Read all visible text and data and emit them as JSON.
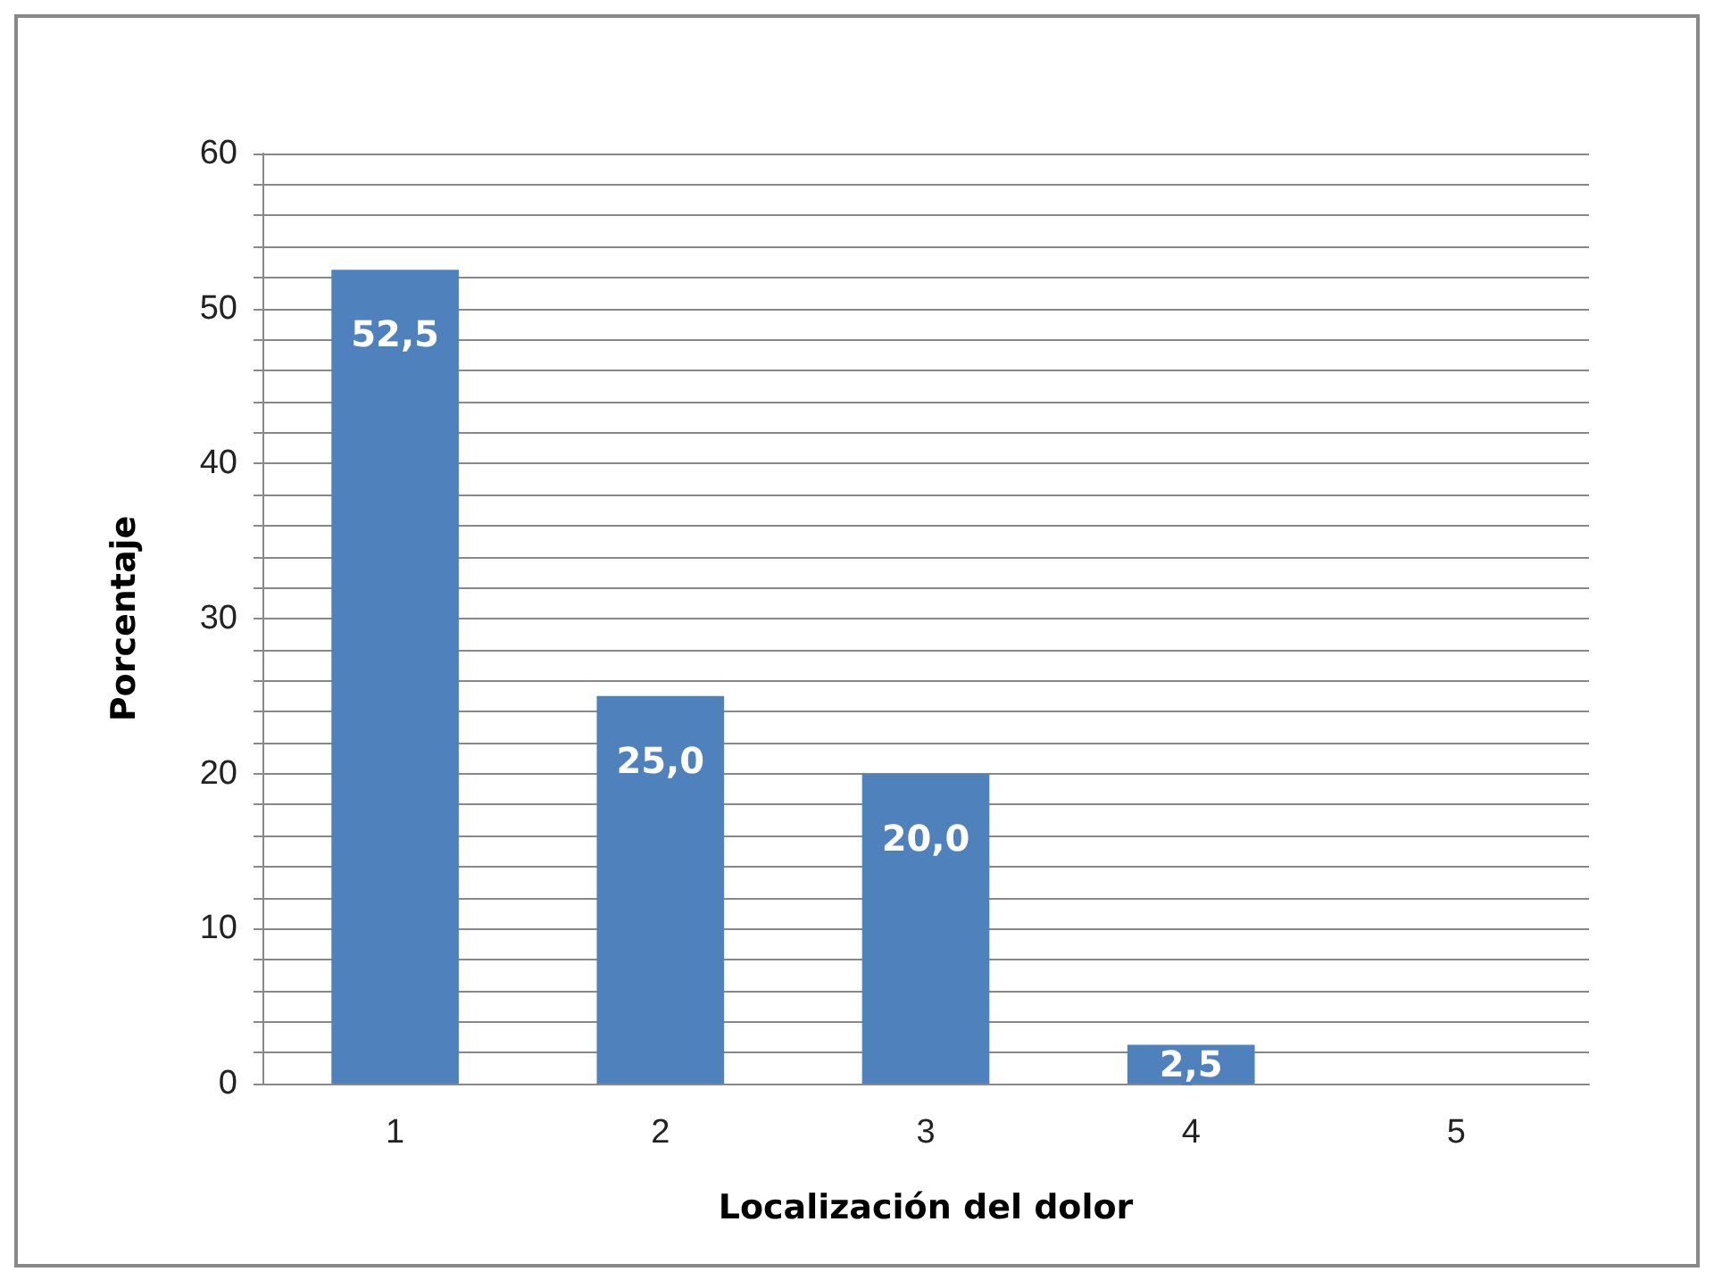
{
  "chart_data": {
    "type": "bar",
    "categories": [
      "1",
      "2",
      "3",
      "4",
      "5"
    ],
    "values": [
      52.5,
      25.0,
      20.0,
      2.5,
      0
    ],
    "value_labels": [
      "52,5",
      "25,0",
      "20,0",
      "2,5",
      null
    ],
    "color": "#4f81bd",
    "xlabel": "Localización del dolor",
    "ylabel": "Porcentaje",
    "ylim": [
      0,
      60
    ],
    "yticks": [
      0,
      {
        "value": 2,
        "label": null
      },
      {
        "value": 4,
        "label": null
      },
      {
        "value": 6,
        "label": null
      },
      {
        "value": 8,
        "label": null
      },
      10,
      {
        "value": 12,
        "label": null
      },
      {
        "value": 14,
        "label": null
      },
      {
        "value": 16,
        "label": null
      },
      {
        "value": 18,
        "label": null
      },
      20,
      {
        "value": 22,
        "label": null
      },
      {
        "value": 24,
        "label": null
      },
      {
        "value": 26,
        "label": null
      },
      {
        "value": 28,
        "label": null
      },
      30,
      {
        "value": 32,
        "label": null
      },
      {
        "value": 34,
        "label": null
      },
      {
        "value": 36,
        "label": null
      },
      {
        "value": 38,
        "label": null
      },
      40,
      {
        "value": 42,
        "label": null
      },
      {
        "value": 44,
        "label": null
      },
      {
        "value": 46,
        "label": null
      },
      {
        "value": 48,
        "label": null
      },
      50,
      {
        "value": 52,
        "label": null
      },
      {
        "value": 54,
        "label": null
      },
      {
        "value": 56,
        "label": null
      },
      {
        "value": 58,
        "label": null
      },
      60
    ],
    "grid": "y"
  }
}
